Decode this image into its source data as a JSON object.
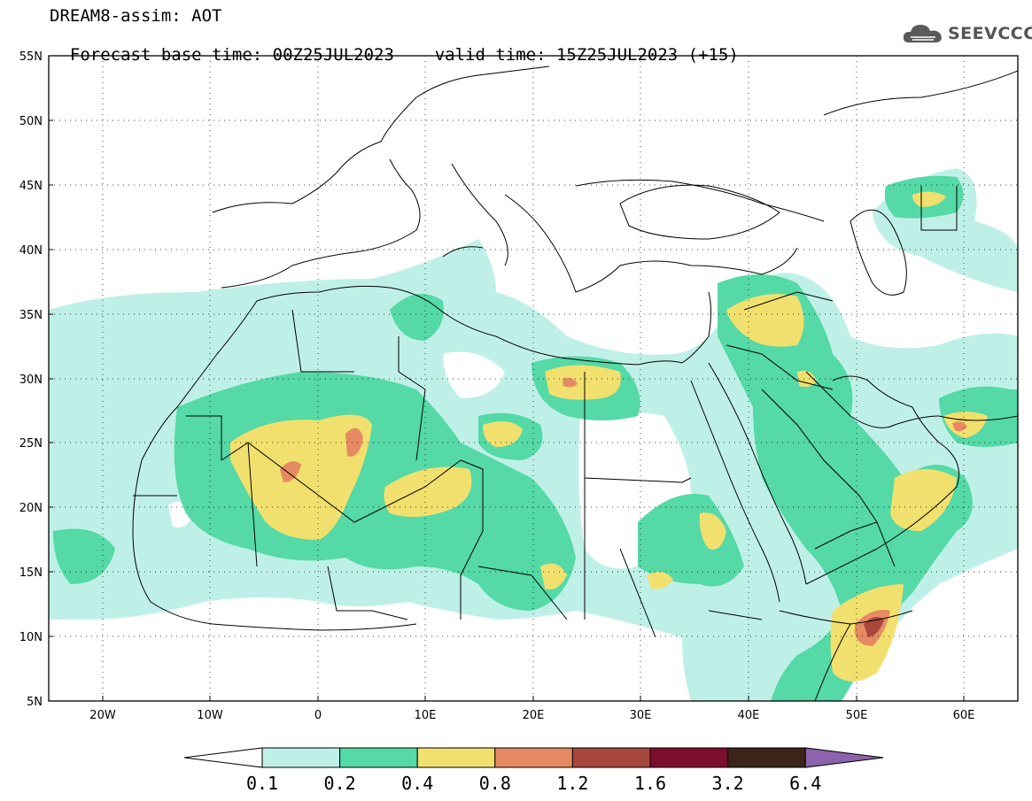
{
  "header": {
    "model_line": "DREAM8-assim: AOT",
    "base_time_label": "Forecast base time: 00Z25JUL2023",
    "valid_time_label": "valid time: 15Z25JUL2023 (+15)"
  },
  "logo": {
    "text": "SEEVCCC",
    "icon": "cloud-icon"
  },
  "map": {
    "projection": "cylindrical",
    "lon_range": [
      -25,
      65
    ],
    "lat_range": [
      5,
      55
    ],
    "lat_ticks": [
      "55N",
      "50N",
      "45N",
      "40N",
      "35N",
      "30N",
      "25N",
      "20N",
      "15N",
      "10N",
      "5N"
    ],
    "lon_ticks": [
      "20W",
      "10W",
      "0",
      "10E",
      "20E",
      "30E",
      "40E",
      "50E",
      "60E"
    ],
    "dotted_grid": true
  },
  "colorbar": {
    "levels": [
      "0.1",
      "0.2",
      "0.4",
      "0.8",
      "1.2",
      "1.6",
      "3.2",
      "6.4"
    ],
    "colors": [
      "#ffffff",
      "#bff0e8",
      "#55d9a6",
      "#f2e06e",
      "#e58a62",
      "#a8473c",
      "#7b0e2c",
      "#3c2418",
      "#8e63ad"
    ]
  }
}
